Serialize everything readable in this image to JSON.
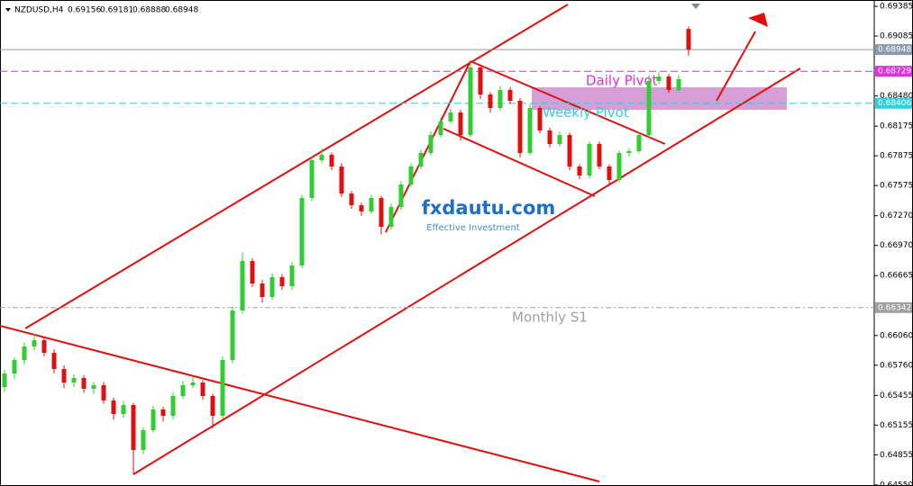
{
  "chart_data": {
    "type": "candlestick",
    "symbol": "NZDUSD,H4",
    "up_color": "#32cd32",
    "down_color": "#e01010",
    "ylim": [
      0.6454,
      0.69449
    ],
    "yticks": [
      0.69385,
      0.69085,
      {
        "value": 0.6848,
        "label": "0.68480"
      },
      0.68175,
      0.67875,
      0.67575,
      {
        "value": 0.6727,
        "label": "0.67270"
      },
      {
        "value": 0.6697,
        "label": "0.66970"
      },
      0.66665,
      {
        "value": 0.6606,
        "label": "0.66060"
      },
      {
        "value": 0.6576,
        "label": "0.65760"
      },
      0.65455,
      0.65155,
      0.64855,
      {
        "value": 0.6455,
        "label": "0.64550"
      }
    ],
    "price_levels": [
      {
        "value": 0.68948,
        "color": "#8a9aaa",
        "style": "solid"
      },
      {
        "value": 0.68729,
        "color": "#e030e0",
        "style": "dashed",
        "name": "Daily Pivot"
      },
      {
        "value": 0.68406,
        "color": "#30d0e0",
        "style": "dashed",
        "name": "Weekly Pivot"
      },
      {
        "value": 0.66342,
        "color": "#a0a0a0",
        "style": "dashdot",
        "name": "Monthly S1"
      }
    ],
    "watermark": "fxdautu.com",
    "watermark_subtitle": "Effective Investment",
    "candles": [
      [
        0.6554,
        0.6571,
        0.6549,
        0.65676
      ],
      [
        0.65676,
        0.6584,
        0.6562,
        0.65813
      ],
      [
        0.65813,
        0.6599,
        0.6577,
        0.65949
      ],
      [
        0.65949,
        0.6608,
        0.6591,
        0.66013
      ],
      [
        0.66013,
        0.6604,
        0.6585,
        0.65885
      ],
      [
        0.65885,
        0.6592,
        0.6568,
        0.65722
      ],
      [
        0.65722,
        0.6576,
        0.6553,
        0.65585
      ],
      [
        0.65585,
        0.6567,
        0.6554,
        0.65631
      ],
      [
        0.65631,
        0.6566,
        0.6548,
        0.65522
      ],
      [
        0.65522,
        0.6559,
        0.6547,
        0.65558
      ],
      [
        0.65558,
        0.6559,
        0.6537,
        0.65404
      ],
      [
        0.65404,
        0.6543,
        0.6521,
        0.65267
      ],
      [
        0.65267,
        0.654,
        0.6523,
        0.65358
      ],
      [
        0.65358,
        0.6538,
        0.6466,
        0.64904
      ],
      [
        0.64904,
        0.6513,
        0.6486,
        0.65104
      ],
      [
        0.65104,
        0.6535,
        0.6508,
        0.65313
      ],
      [
        0.65313,
        0.6534,
        0.6519,
        0.65249
      ],
      [
        0.65249,
        0.6549,
        0.6521,
        0.65449
      ],
      [
        0.65449,
        0.656,
        0.6542,
        0.65558
      ],
      [
        0.65558,
        0.6565,
        0.6553,
        0.65585
      ],
      [
        0.65585,
        0.6561,
        0.6541,
        0.65449
      ],
      [
        0.65449,
        0.6547,
        0.6512,
        0.65249
      ],
      [
        0.65249,
        0.6585,
        0.6522,
        0.65813
      ],
      [
        0.65813,
        0.6635,
        0.6578,
        0.66313
      ],
      [
        0.66313,
        0.669,
        0.6628,
        0.66813
      ],
      [
        0.66813,
        0.6684,
        0.6655,
        0.66585
      ],
      [
        0.66585,
        0.6662,
        0.6639,
        0.66449
      ],
      [
        0.66449,
        0.6669,
        0.6642,
        0.66649
      ],
      [
        0.66649,
        0.6668,
        0.6652,
        0.66558
      ],
      [
        0.66558,
        0.668,
        0.6652,
        0.66767
      ],
      [
        0.66767,
        0.6748,
        0.6674,
        0.67449
      ],
      [
        0.67449,
        0.6787,
        0.6742,
        0.67831
      ],
      [
        0.67831,
        0.6795,
        0.678,
        0.67885
      ],
      [
        0.67885,
        0.6791,
        0.6773,
        0.67767
      ],
      [
        0.67767,
        0.678,
        0.6746,
        0.67494
      ],
      [
        0.67494,
        0.6752,
        0.6734,
        0.67376
      ],
      [
        0.67376,
        0.674,
        0.6727,
        0.67313
      ],
      [
        0.67313,
        0.6748,
        0.6729,
        0.67449
      ],
      [
        0.67449,
        0.6747,
        0.6708,
        0.67158
      ],
      [
        0.67158,
        0.6739,
        0.6713,
        0.67358
      ],
      [
        0.67358,
        0.6762,
        0.6733,
        0.67585
      ],
      [
        0.67585,
        0.678,
        0.6756,
        0.67767
      ],
      [
        0.67767,
        0.6794,
        0.6774,
        0.67904
      ],
      [
        0.67904,
        0.6812,
        0.6788,
        0.68085
      ],
      [
        0.68085,
        0.6826,
        0.6806,
        0.68222
      ],
      [
        0.68222,
        0.6835,
        0.682,
        0.68313
      ],
      [
        0.68313,
        0.6834,
        0.6803,
        0.68085
      ],
      [
        0.68085,
        0.6882,
        0.6806,
        0.68767
      ],
      [
        0.68767,
        0.6879,
        0.6845,
        0.68494
      ],
      [
        0.68494,
        0.6852,
        0.6831,
        0.68358
      ],
      [
        0.68358,
        0.6858,
        0.6833,
        0.6854
      ],
      [
        0.6854,
        0.6857,
        0.684,
        0.68431
      ],
      [
        0.68431,
        0.6846,
        0.6786,
        0.67904
      ],
      [
        0.67904,
        0.684,
        0.6788,
        0.68358
      ],
      [
        0.68358,
        0.6838,
        0.681,
        0.68131
      ],
      [
        0.68131,
        0.6816,
        0.6796,
        0.67994
      ],
      [
        0.67994,
        0.6812,
        0.6797,
        0.68085
      ],
      [
        0.68085,
        0.6811,
        0.6773,
        0.67767
      ],
      [
        0.67767,
        0.6779,
        0.6764,
        0.67676
      ],
      [
        0.67676,
        0.6802,
        0.6765,
        0.67994
      ],
      [
        0.67994,
        0.6802,
        0.6774,
        0.67767
      ],
      [
        0.67767,
        0.6779,
        0.6758,
        0.67631
      ],
      [
        0.67631,
        0.6793,
        0.6761,
        0.67904
      ],
      [
        0.67904,
        0.6795,
        0.6787,
        0.67922
      ],
      [
        0.67922,
        0.6811,
        0.679,
        0.68085
      ],
      [
        0.68085,
        0.6869,
        0.6806,
        0.68631
      ],
      [
        0.68631,
        0.6872,
        0.686,
        0.68676
      ],
      [
        0.68676,
        0.687,
        0.6851,
        0.6854
      ],
      [
        0.6854,
        0.6869,
        0.6852,
        0.68649
      ],
      [
        0.69156,
        0.69181,
        0.68888,
        0.68948
      ]
    ]
  }
}
